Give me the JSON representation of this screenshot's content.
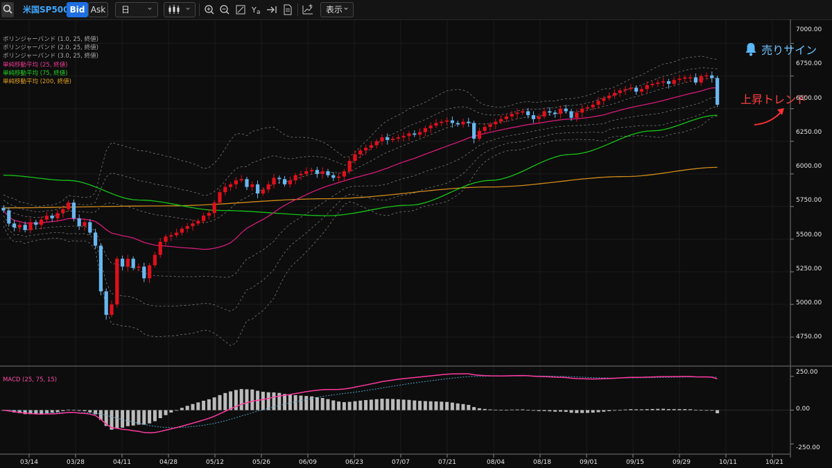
{
  "toolbar": {
    "symbol": "米国SP500",
    "bid_label": "Bid",
    "ask_label": "Ask",
    "timeframe": "日",
    "display_label": "表示",
    "dropdown_arrow": "⌄"
  },
  "legend": {
    "bb1": "ボリンジャーバンド (1.0, 25, 終値)",
    "bb2": "ボリンジャーバンド (2.0, 25, 終値)",
    "bb3": "ボリンジャーバンド (3.0, 25, 終値)",
    "sma25": "単純移動平均 (25, 終値)",
    "sma75": "単純移動平均 (75, 終値)",
    "sma200": "単純移動平均 (200, 終値)",
    "macd": "MACD (25, 75, 15)"
  },
  "annotations": {
    "sell_sign": "売りサイン",
    "uptrend": "上昇トレンド"
  },
  "colors": {
    "bull": "#e0101c",
    "bear": "#6ab7f0",
    "sma25": "#d81b7a",
    "sma75": "#17c417",
    "sma200": "#d08a1a",
    "band": "#777777",
    "macd": "#ff3aa0",
    "signal": "#4aa3c8",
    "hist": "#bbbbbb"
  },
  "price_axis": {
    "ticks": [
      "7000.00",
      "6750.00",
      "6500.00",
      "6250.00",
      "6000.00",
      "5750.00",
      "5500.00",
      "5250.00",
      "5000.00",
      "4750.00"
    ],
    "range": [
      4570,
      7120
    ]
  },
  "macd_axis": {
    "ticks": [
      "250.00",
      "0.00",
      "-250.00"
    ],
    "range": [
      -300,
      280
    ]
  },
  "date_axis": {
    "labels": [
      "03/14",
      "03/28",
      "04/11",
      "04/28",
      "05/12",
      "05/26",
      "06/09",
      "06/23",
      "07/07",
      "07/21",
      "08/04",
      "08/18",
      "09/01",
      "09/15",
      "09/29",
      "10/11",
      "10/21"
    ]
  },
  "chart_data": {
    "type": "candlestick",
    "symbol": "米国SP500",
    "timeframe": "日",
    "close_series": [
      5720,
      5620,
      5590,
      5610,
      5570,
      5630,
      5610,
      5650,
      5680,
      5660,
      5700,
      5730,
      5780,
      5660,
      5600,
      5630,
      5550,
      5450,
      5100,
      4920,
      5000,
      5350,
      5290,
      5350,
      5280,
      5290,
      5200,
      5300,
      5380,
      5480,
      5520,
      5530,
      5550,
      5580,
      5600,
      5620,
      5640,
      5680,
      5700,
      5780,
      5860,
      5900,
      5920,
      5950,
      5960,
      5900,
      5920,
      5850,
      5880,
      5920,
      5970,
      5960,
      5920,
      5950,
      5990,
      6000,
      6020,
      6030,
      6000,
      6020,
      5990,
      5970,
      5980,
      6020,
      6100,
      6150,
      6180,
      6200,
      6220,
      6250,
      6280,
      6260,
      6270,
      6280,
      6290,
      6310,
      6300,
      6320,
      6350,
      6370,
      6390,
      6400,
      6410,
      6390,
      6380,
      6400,
      6390,
      6270,
      6330,
      6360,
      6380,
      6400,
      6420,
      6440,
      6460,
      6470,
      6480,
      6450,
      6420,
      6440,
      6480,
      6470,
      6460,
      6500,
      6480,
      6430,
      6470,
      6500,
      6510,
      6530,
      6560,
      6580,
      6600,
      6620,
      6640,
      6650,
      6660,
      6630,
      6650,
      6680,
      6690,
      6700,
      6710,
      6690,
      6720,
      6730,
      6740,
      6740,
      6700,
      6750,
      6755,
      6735,
      6530
    ],
    "sma_25": "rises from about 5590 (03/14) to about 6640 (10/10)",
    "sma_75": "about 5990 on 03/14, bottoming near 5680 in June, about 6450 on 10/10",
    "sma_200": "rises from about 5740 (03/14) to about 6050 (10/10)",
    "macd_range": [
      -250,
      210
    ],
    "ylim": [
      4570,
      7120
    ]
  }
}
